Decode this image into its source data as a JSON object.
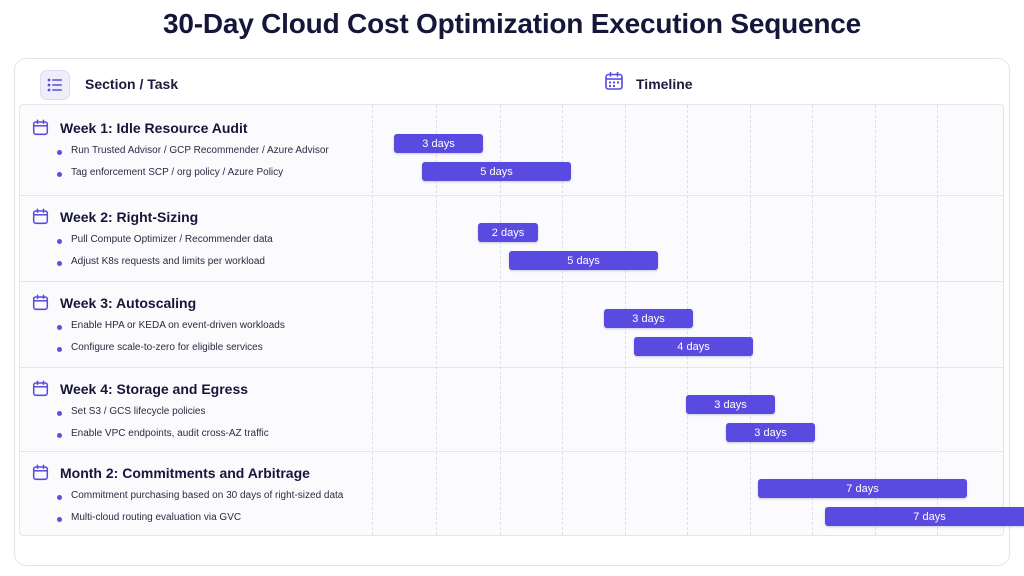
{
  "title": "30-Day Cloud Cost Optimization Execution Sequence",
  "header": {
    "section_label": "Section / Task",
    "timeline_label": "Timeline",
    "list_icon": "list-icon",
    "calendar_icon": "calendar-icon"
  },
  "colors": {
    "accent": "#5a4be0",
    "title": "#16163a",
    "bar_text": "#ffffff"
  },
  "sections": [
    {
      "title": "Week 1: Idle Resource Audit",
      "tasks": [
        {
          "label": "Run Trusted Advisor / GCP Recommender / Azure Advisor",
          "duration": "3 days",
          "start_day": 1,
          "days": 3
        },
        {
          "label": "Tag enforcement SCP / org policy / Azure Policy",
          "duration": "5 days",
          "start_day": 2,
          "days": 5
        }
      ]
    },
    {
      "title": "Week 2: Right-Sizing",
      "tasks": [
        {
          "label": "Pull Compute Optimizer / Recommender data",
          "duration": "2 days",
          "start_day": 4,
          "days": 2
        },
        {
          "label": "Adjust K8s requests and limits per workload",
          "duration": "5 days",
          "start_day": 5,
          "days": 5
        }
      ]
    },
    {
      "title": "Week 3: Autoscaling",
      "tasks": [
        {
          "label": "Enable HPA or KEDA on event-driven workloads",
          "duration": "3 days",
          "start_day": 8,
          "days": 3
        },
        {
          "label": "Configure scale-to-zero for eligible services",
          "duration": "4 days",
          "start_day": 9,
          "days": 4
        }
      ]
    },
    {
      "title": "Week 4: Storage and Egress",
      "tasks": [
        {
          "label": "Set S3 / GCS lifecycle policies",
          "duration": "3 days",
          "start_day": 11,
          "days": 3
        },
        {
          "label": "Enable VPC endpoints, audit cross-AZ traffic",
          "duration": "3 days",
          "start_day": 12,
          "days": 3
        }
      ]
    },
    {
      "title": "Month 2: Commitments and Arbitrage",
      "tasks": [
        {
          "label": "Commitment purchasing based on 30 days of right-sized data",
          "duration": "7 days",
          "start_day": 13,
          "days": 7
        },
        {
          "label": "Multi-cloud routing evaluation via GVC",
          "duration": "7 days",
          "start_day": 15,
          "days": 7
        }
      ]
    }
  ]
}
